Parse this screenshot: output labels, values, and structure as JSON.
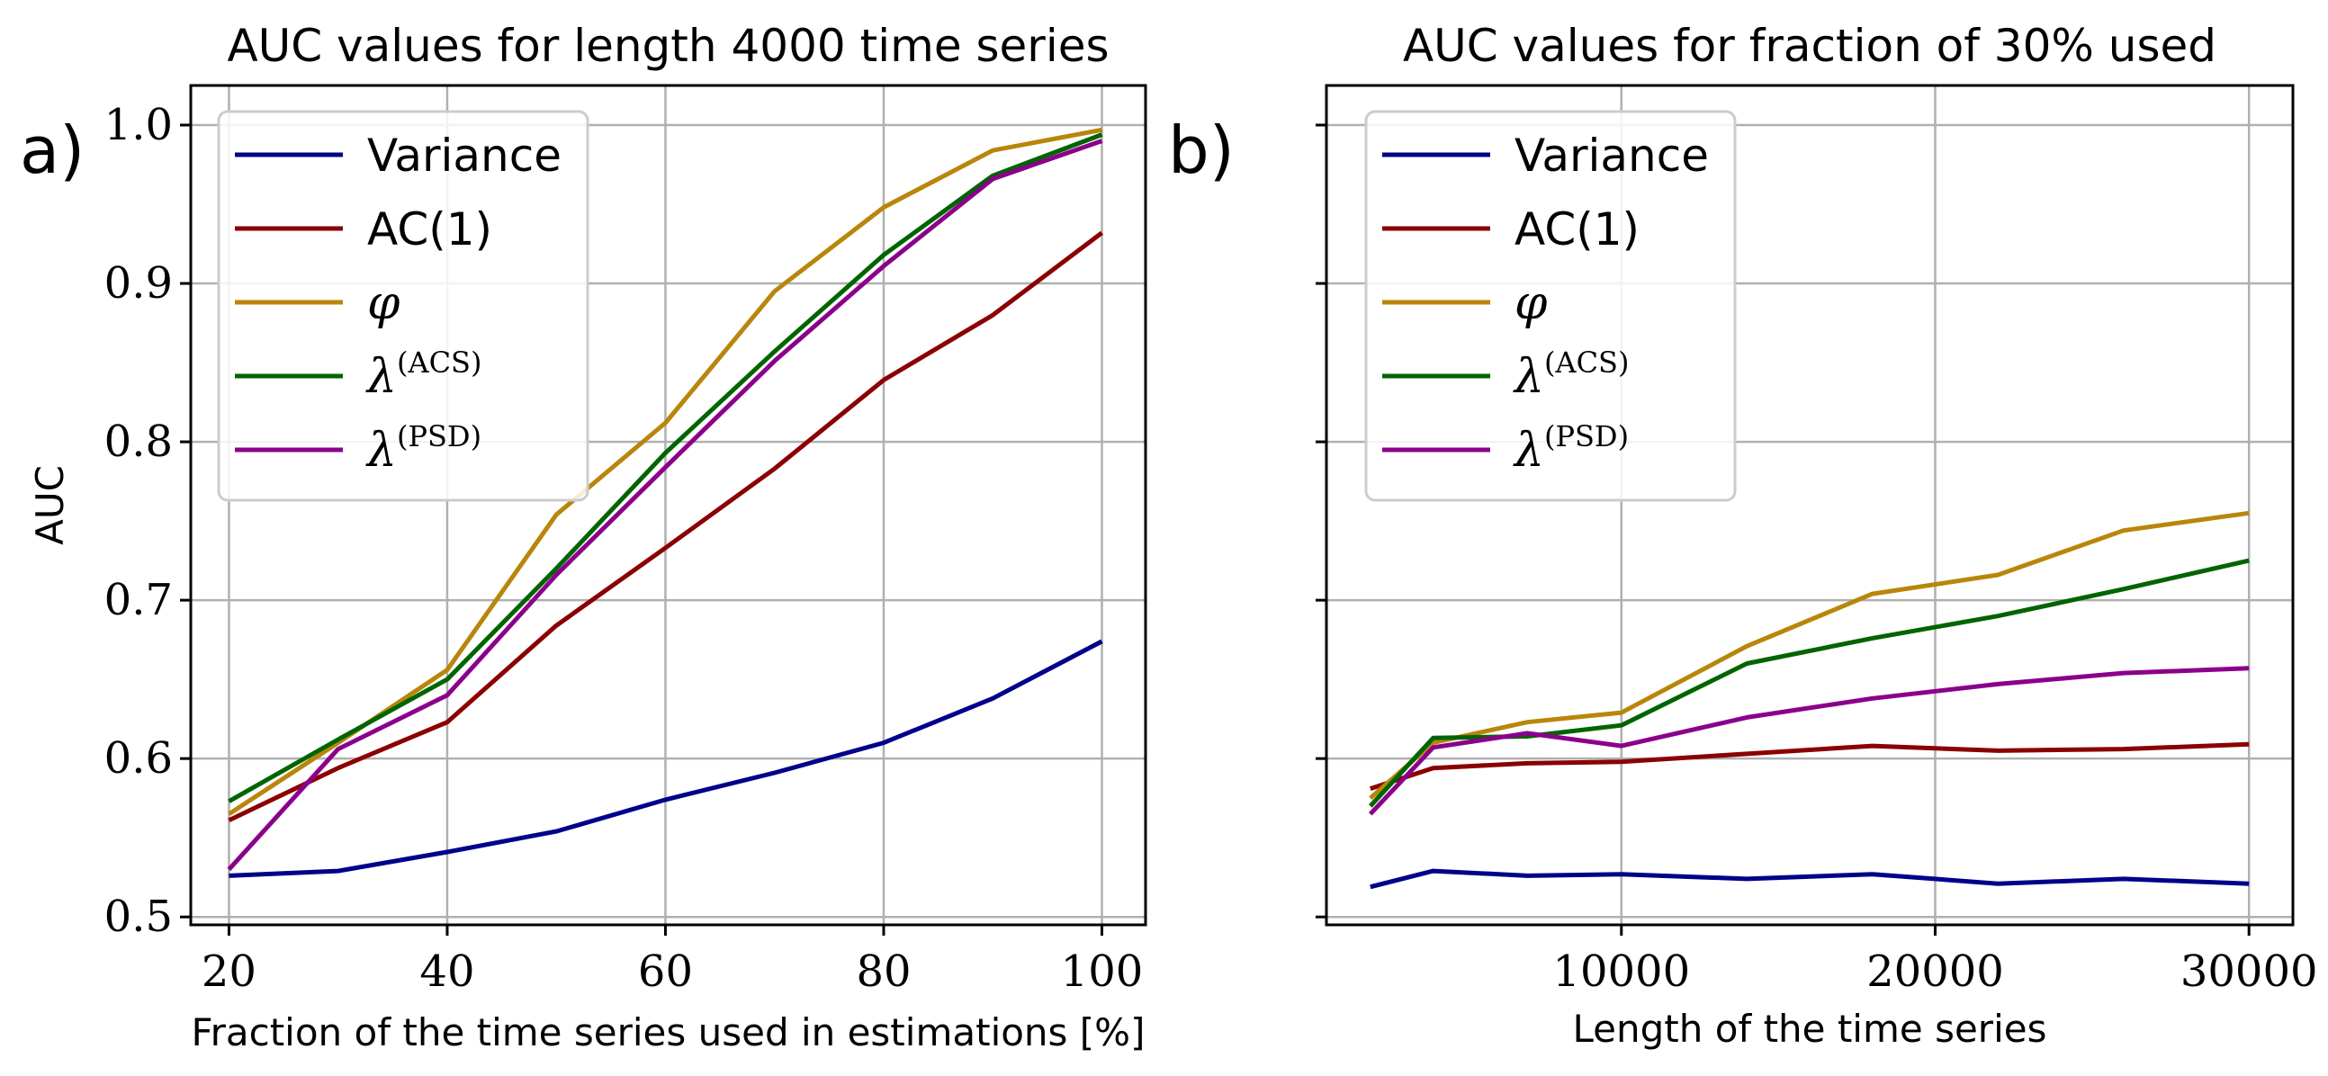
{
  "chart_data": [
    {
      "type": "line",
      "panel_label": "a)",
      "title": "AUC values for length 4000 time series",
      "xlabel": "Fraction of the time series used in estimations [%]",
      "ylabel": "AUC",
      "x": [
        20,
        30,
        40,
        50,
        60,
        70,
        80,
        90,
        100
      ],
      "xticks": [
        20,
        40,
        60,
        80,
        100
      ],
      "xlim": [
        16.5,
        104
      ],
      "yticks": [
        0.5,
        0.6,
        0.7,
        0.8,
        0.9,
        1.0
      ],
      "ytick_labels": [
        "0.5",
        "0.6",
        "0.7",
        "0.8",
        "0.9",
        "1.0"
      ],
      "ylim": [
        0.495,
        1.025
      ],
      "grid": true,
      "legend_position": "top-left",
      "series": [
        {
          "name": "Variance",
          "color": "#00008b",
          "values": [
            0.526,
            0.529,
            0.541,
            0.554,
            0.574,
            0.591,
            0.61,
            0.638,
            0.674
          ]
        },
        {
          "name": "AC(1)",
          "color": "#8b0000",
          "values": [
            0.561,
            0.594,
            0.623,
            0.684,
            0.733,
            0.783,
            0.839,
            0.88,
            0.932
          ]
        },
        {
          "name": "φ",
          "color": "#b8860b",
          "values": [
            0.565,
            0.61,
            0.656,
            0.754,
            0.812,
            0.895,
            0.948,
            0.984,
            0.997
          ]
        },
        {
          "name": "λ(ACS)",
          "color": "#006400",
          "values": [
            0.573,
            0.612,
            0.65,
            0.72,
            0.793,
            0.857,
            0.918,
            0.968,
            0.994
          ]
        },
        {
          "name": "λ(PSD)",
          "color": "#8b008b",
          "values": [
            0.53,
            0.606,
            0.64,
            0.716,
            0.784,
            0.851,
            0.911,
            0.966,
            0.99
          ]
        }
      ]
    },
    {
      "type": "line",
      "panel_label": "b)",
      "title": "AUC values for fraction of 30% used",
      "xlabel": "Length of the time series",
      "ylabel": "",
      "x": [
        2000,
        4000,
        7000,
        10000,
        14000,
        18000,
        22000,
        26000,
        30000
      ],
      "xticks": [
        10000,
        20000,
        30000
      ],
      "xlim": [
        600,
        31400
      ],
      "yticks": [
        0.5,
        0.6,
        0.7,
        0.8,
        0.9,
        1.0
      ],
      "ylim": [
        0.495,
        1.025
      ],
      "grid": true,
      "legend_position": "top-left",
      "series": [
        {
          "name": "Variance",
          "color": "#00008b",
          "values": [
            0.519,
            0.529,
            0.526,
            0.527,
            0.524,
            0.527,
            0.521,
            0.524,
            0.521
          ]
        },
        {
          "name": "AC(1)",
          "color": "#8b0000",
          "values": [
            0.581,
            0.594,
            0.597,
            0.598,
            0.603,
            0.608,
            0.605,
            0.606,
            0.609
          ]
        },
        {
          "name": "φ",
          "color": "#b8860b",
          "values": [
            0.575,
            0.61,
            0.623,
            0.629,
            0.671,
            0.704,
            0.716,
            0.744,
            0.755
          ]
        },
        {
          "name": "λ(ACS)",
          "color": "#006400",
          "values": [
            0.57,
            0.613,
            0.614,
            0.621,
            0.66,
            0.676,
            0.69,
            0.707,
            0.725
          ]
        },
        {
          "name": "λ(PSD)",
          "color": "#8b008b",
          "values": [
            0.565,
            0.607,
            0.616,
            0.608,
            0.626,
            0.638,
            0.647,
            0.654,
            0.657
          ]
        }
      ]
    }
  ]
}
